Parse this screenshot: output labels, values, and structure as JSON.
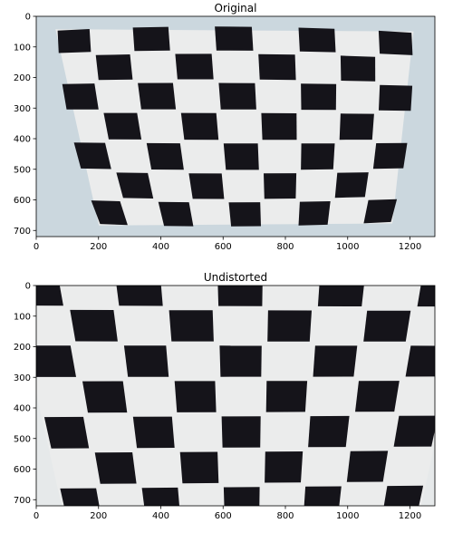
{
  "figure": {
    "panels": [
      {
        "title": "Original",
        "x_ticks": [
          "0",
          "200",
          "400",
          "600",
          "800",
          "1000",
          "1200"
        ],
        "y_ticks": [
          "0",
          "100",
          "200",
          "300",
          "400",
          "500",
          "600",
          "700"
        ],
        "xlim": [
          0,
          1280
        ],
        "ylim": [
          720,
          0
        ]
      },
      {
        "title": "Undistorted",
        "x_ticks": [
          "0",
          "200",
          "400",
          "600",
          "800",
          "1000",
          "1200"
        ],
        "y_ticks": [
          "0",
          "100",
          "200",
          "300",
          "400",
          "500",
          "600",
          "700"
        ],
        "xlim": [
          0,
          1280
        ],
        "ylim": [
          720,
          0
        ]
      }
    ],
    "colors": {
      "background_board": "#ebecec",
      "square_dark": "#15141a",
      "backdrop": "#c9d6de",
      "axis": "#000000"
    }
  }
}
